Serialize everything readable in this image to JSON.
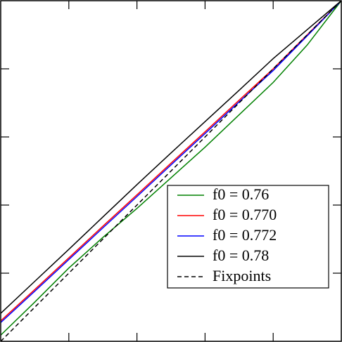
{
  "chart_data": {
    "type": "line",
    "x": [
      0,
      0.1,
      0.2,
      0.3,
      0.4,
      0.5,
      0.6,
      0.7,
      0.8,
      0.9,
      1
    ],
    "xlim": [
      0,
      1
    ],
    "ylim": [
      0,
      1
    ],
    "xticks": [
      0.2,
      0.4,
      0.6,
      0.8
    ],
    "yticks": [
      0.2,
      0.4,
      0.6,
      0.8
    ],
    "legend": "lower right",
    "series": [
      {
        "name": "f0 = 0.76",
        "color": "#008000",
        "dash": "solid",
        "values": [
          0.018,
          0.115,
          0.215,
          0.305,
          0.39,
          0.48,
          0.57,
          0.665,
          0.76,
          0.87,
          1
        ]
      },
      {
        "name": "f0 = 0.770",
        "color": "#ff0000",
        "dash": "solid",
        "values": [
          0.06,
          0.152,
          0.245,
          0.338,
          0.43,
          0.523,
          0.615,
          0.708,
          0.8,
          0.9,
          1
        ]
      },
      {
        "name": "f0 = 0.772",
        "color": "#0000ff",
        "dash": "solid",
        "values": [
          0.055,
          0.147,
          0.24,
          0.333,
          0.425,
          0.518,
          0.61,
          0.703,
          0.795,
          0.897,
          1
        ]
      },
      {
        "name": "f0 = 0.78",
        "color": "#000000",
        "dash": "solid",
        "values": [
          0.082,
          0.176,
          0.27,
          0.365,
          0.46,
          0.553,
          0.645,
          0.737,
          0.83,
          0.915,
          1
        ]
      },
      {
        "name": "Fixpoints",
        "color": "#000000",
        "dash": "dashed",
        "values": [
          0,
          0.1,
          0.2,
          0.3,
          0.4,
          0.5,
          0.6,
          0.7,
          0.8,
          0.9,
          1
        ]
      }
    ]
  }
}
